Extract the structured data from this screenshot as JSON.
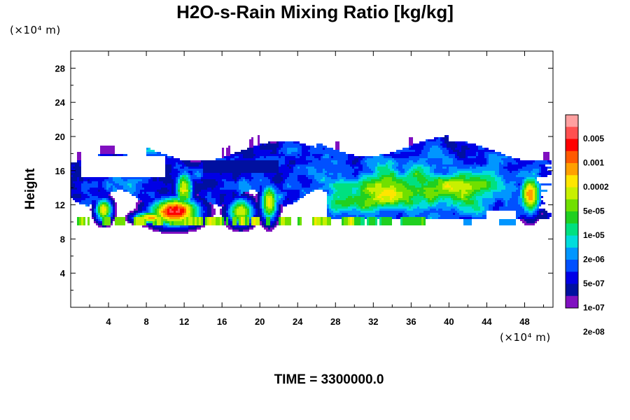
{
  "chart_data": {
    "type": "heatmap",
    "title": "H2O-s-Rain Mixing Ratio [kg/kg]",
    "ylabel": "Height",
    "xlabel": "",
    "x_unit": "(×10⁴ m)",
    "y_unit": "(×10⁴ m)",
    "xlim": [
      0,
      51
    ],
    "ylim": [
      0,
      30
    ],
    "x_ticks": [
      4,
      8,
      12,
      16,
      20,
      24,
      28,
      32,
      36,
      40,
      44,
      48
    ],
    "y_ticks": [
      4,
      8,
      12,
      16,
      20,
      24,
      28
    ],
    "grid": false,
    "legend": "right",
    "colorbar": {
      "colors": [
        "#ffa0a0",
        "#ff5050",
        "#ff0000",
        "#ff5a00",
        "#ffa000",
        "#ffe600",
        "#c8f000",
        "#70e000",
        "#20d020",
        "#00e080",
        "#00dcdc",
        "#0096ff",
        "#0050ff",
        "#0000e6",
        "#0010a0",
        "#8010c0"
      ],
      "labels": [
        "0.005",
        "0.001",
        "0.0002",
        "5e-05",
        "1e-05",
        "2e-06",
        "5e-07",
        "1e-07",
        "2e-08"
      ]
    },
    "features": [
      {
        "region": "upper cloud layer",
        "x_range": [
          0,
          51
        ],
        "y_range": [
          11,
          19.5
        ],
        "level": "2e-08 to 1e-05"
      },
      {
        "region": "broad maximum",
        "x_range": [
          26,
          46
        ],
        "y_range": [
          11,
          17
        ],
        "level": "5e-05 to 0.0002"
      },
      {
        "region": "convective core",
        "x_range": [
          8,
          14
        ],
        "y_range": [
          9.5,
          16.5
        ],
        "level": "0.001 to 0.005"
      },
      {
        "region": "convective core",
        "x_range": [
          3,
          5
        ],
        "y_range": [
          10,
          13
        ],
        "level": "0.0002 to 0.001"
      },
      {
        "region": "convective core",
        "x_range": [
          17,
          22
        ],
        "y_range": [
          10,
          15
        ],
        "level": "0.0002 to 0.001"
      },
      {
        "region": "convective core",
        "x_range": [
          47,
          50
        ],
        "y_range": [
          11,
          16
        ],
        "level": "0.0002 to 0.001"
      },
      {
        "region": "low cloud band",
        "x_range": [
          0,
          37
        ],
        "y_range": [
          9.5,
          10.5
        ],
        "level": "1e-05 to 0.001"
      }
    ]
  },
  "time_label": "TIME = 3300000.0"
}
